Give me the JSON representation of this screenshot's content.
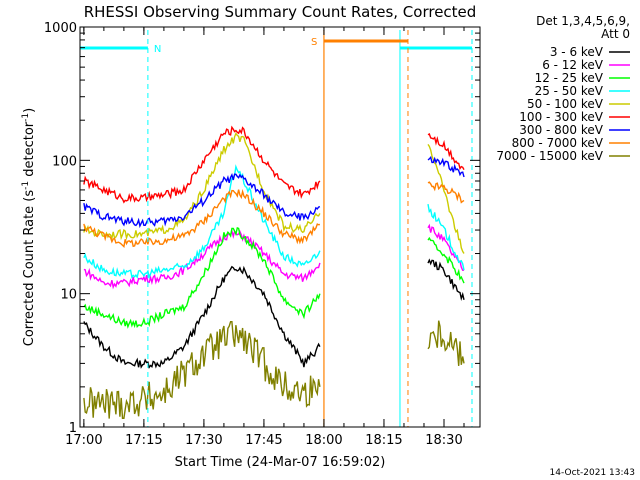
{
  "chart_data": {
    "type": "line",
    "title": "RHESSI Observing Summary Count Rates, Corrected",
    "xlabel": "Start Time (24-Mar-07 16:59:02)",
    "ylabel_main": "Corrected Count Rate (s",
    "ylabel_sup1": "-1",
    "ylabel_mid": " detector",
    "ylabel_sup2": "-1",
    "ylabel_end": ")",
    "yscale": "log",
    "ylim": [
      1,
      1000
    ],
    "xlim": [
      "16:59:02",
      "18:39:00"
    ],
    "x_ticks": [
      "17:00",
      "17:15",
      "17:30",
      "17:45",
      "18:00",
      "18:15",
      "18:30"
    ],
    "y_ticks": [
      "1",
      "10",
      "100",
      "1000"
    ],
    "legend_position": "right",
    "legend_header": [
      "Det 1,3,4,5,6,9,",
      "Att 0"
    ],
    "series": [
      {
        "name": "3 - 6 keV",
        "color": "#000000",
        "x": [
          "17:00",
          "17:05",
          "17:10",
          "17:15",
          "17:20",
          "17:25",
          "17:30",
          "17:35",
          "17:38",
          "17:40",
          "17:45",
          "17:50",
          "17:55",
          "17:59",
          "18:26",
          "18:30",
          "18:33",
          "18:35"
        ],
        "y": [
          6,
          4,
          3,
          3,
          3,
          4,
          7,
          13,
          16,
          15,
          10,
          5,
          3,
          4,
          18,
          15,
          11,
          9
        ]
      },
      {
        "name": "6 - 12 keV",
        "color": "#ff00ff",
        "x": [
          "17:00",
          "17:05",
          "17:10",
          "17:15",
          "17:20",
          "17:25",
          "17:30",
          "17:35",
          "17:38",
          "17:40",
          "17:45",
          "17:50",
          "17:55",
          "17:59",
          "18:26",
          "18:30",
          "18:33",
          "18:35"
        ],
        "y": [
          15,
          12,
          12,
          13,
          13,
          15,
          20,
          27,
          28,
          27,
          20,
          14,
          13,
          17,
          32,
          25,
          18,
          15
        ]
      },
      {
        "name": "12 - 25 keV",
        "color": "#00ff00",
        "x": [
          "17:00",
          "17:05",
          "17:10",
          "17:15",
          "17:20",
          "17:25",
          "17:30",
          "17:35",
          "17:38",
          "17:40",
          "17:45",
          "17:50",
          "17:55",
          "17:59",
          "18:26",
          "18:30",
          "18:33",
          "18:35"
        ],
        "y": [
          8,
          7,
          6,
          6,
          7,
          8,
          14,
          27,
          30,
          27,
          18,
          9,
          7,
          10,
          25,
          20,
          15,
          12
        ]
      },
      {
        "name": "25 - 50 keV",
        "color": "#00ffff",
        "x": [
          "17:00",
          "17:05",
          "17:10",
          "17:15",
          "17:20",
          "17:25",
          "17:30",
          "17:35",
          "17:38",
          "17:40",
          "17:45",
          "17:50",
          "17:55",
          "17:59",
          "18:26",
          "18:30",
          "18:33",
          "18:35"
        ],
        "y": [
          19,
          15,
          14,
          14,
          15,
          16,
          22,
          40,
          90,
          70,
          35,
          19,
          16,
          21,
          45,
          30,
          20,
          15
        ]
      },
      {
        "name": "50 - 100 keV",
        "color": "#cccc00",
        "x": [
          "17:00",
          "17:05",
          "17:10",
          "17:15",
          "17:20",
          "17:25",
          "17:30",
          "17:35",
          "17:38",
          "17:40",
          "17:45",
          "17:50",
          "17:55",
          "17:59",
          "18:26",
          "18:30",
          "18:33",
          "18:35"
        ],
        "y": [
          30,
          28,
          28,
          28,
          30,
          35,
          60,
          120,
          150,
          140,
          60,
          32,
          30,
          40,
          140,
          60,
          30,
          20
        ]
      },
      {
        "name": "100 - 300 keV",
        "color": "#ff0000",
        "x": [
          "17:00",
          "17:05",
          "17:10",
          "17:15",
          "17:20",
          "17:25",
          "17:30",
          "17:35",
          "17:38",
          "17:40",
          "17:45",
          "17:50",
          "17:55",
          "17:59",
          "18:26",
          "18:30",
          "18:33",
          "18:35"
        ],
        "y": [
          70,
          60,
          52,
          52,
          55,
          60,
          100,
          160,
          170,
          165,
          100,
          65,
          55,
          70,
          160,
          130,
          100,
          85
        ]
      },
      {
        "name": "300 - 800 keV",
        "color": "#0000ff",
        "x": [
          "17:00",
          "17:05",
          "17:10",
          "17:15",
          "17:20",
          "17:25",
          "17:30",
          "17:35",
          "17:38",
          "17:40",
          "17:45",
          "17:50",
          "17:55",
          "17:59",
          "18:26",
          "18:30",
          "18:33",
          "18:35"
        ],
        "y": [
          45,
          38,
          35,
          34,
          35,
          38,
          50,
          70,
          75,
          72,
          55,
          40,
          37,
          45,
          100,
          95,
          85,
          75
        ]
      },
      {
        "name": "800 - 7000 keV",
        "color": "#ff8000",
        "x": [
          "17:00",
          "17:05",
          "17:10",
          "17:15",
          "17:20",
          "17:25",
          "17:30",
          "17:35",
          "17:38",
          "17:40",
          "17:45",
          "17:50",
          "17:55",
          "17:59",
          "18:26",
          "18:30",
          "18:33",
          "18:35"
        ],
        "y": [
          32,
          27,
          24,
          24,
          25,
          27,
          35,
          52,
          58,
          55,
          40,
          28,
          25,
          33,
          65,
          62,
          55,
          50
        ]
      },
      {
        "name": "7000 - 15000 keV",
        "color": "#808000",
        "x": [
          "17:00",
          "17:05",
          "17:10",
          "17:15",
          "17:20",
          "17:25",
          "17:30",
          "17:35",
          "17:38",
          "17:40",
          "17:45",
          "17:50",
          "17:55",
          "17:59",
          "18:26",
          "18:30",
          "18:33",
          "18:35"
        ],
        "y": [
          1.5,
          1.5,
          1.5,
          1.6,
          1.8,
          2.5,
          3.5,
          4.5,
          5,
          4.5,
          3,
          2,
          1.8,
          2,
          5,
          5,
          4,
          3
        ]
      }
    ],
    "annotations": [
      {
        "text": "N",
        "color": "#00ffff"
      },
      {
        "text": "S",
        "color": "#ff8000"
      }
    ],
    "night_intervals": [
      [
        "16:59:02",
        "17:16:00"
      ],
      [
        "18:19:00",
        "18:37:00"
      ]
    ],
    "saa_interval": [
      "18:00:00",
      "18:21:00"
    ],
    "footer": "14-Oct-2021 13:43"
  }
}
